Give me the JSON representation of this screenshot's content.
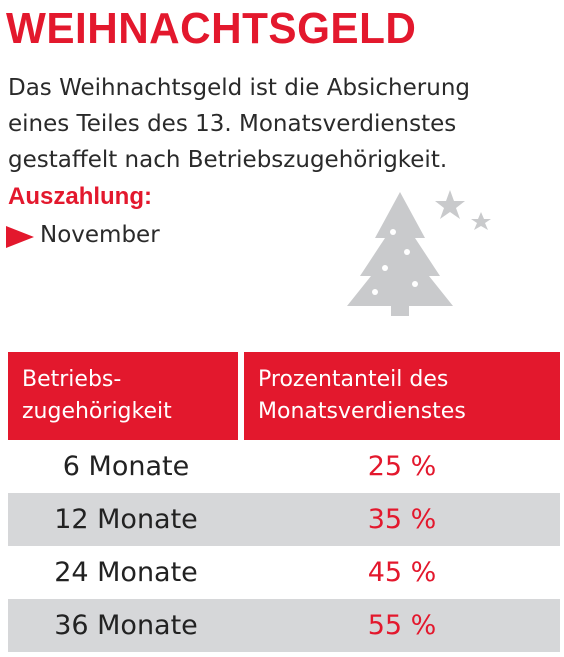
{
  "header": {
    "title": "WEIHNACHTSGELD",
    "description": [
      "Das Weihnachtsgeld ist die Absicherung",
      "eines Teiles des 13. Monatsverdienstes",
      "gestaffelt nach Betriebszugehörigkeit."
    ],
    "payout_label": "Auszahlung:",
    "payout_value": "November"
  },
  "table": {
    "columns": [
      [
        "Betriebs-",
        "zugehörigkeit"
      ],
      [
        "Prozentanteil des",
        "Monatsverdienstes"
      ]
    ],
    "rows": [
      [
        "6 Monate",
        "25 %"
      ],
      [
        "12 Monate",
        "35 %"
      ],
      [
        "24 Monate",
        "45 %"
      ],
      [
        "36 Monate",
        "55 %"
      ]
    ]
  }
}
